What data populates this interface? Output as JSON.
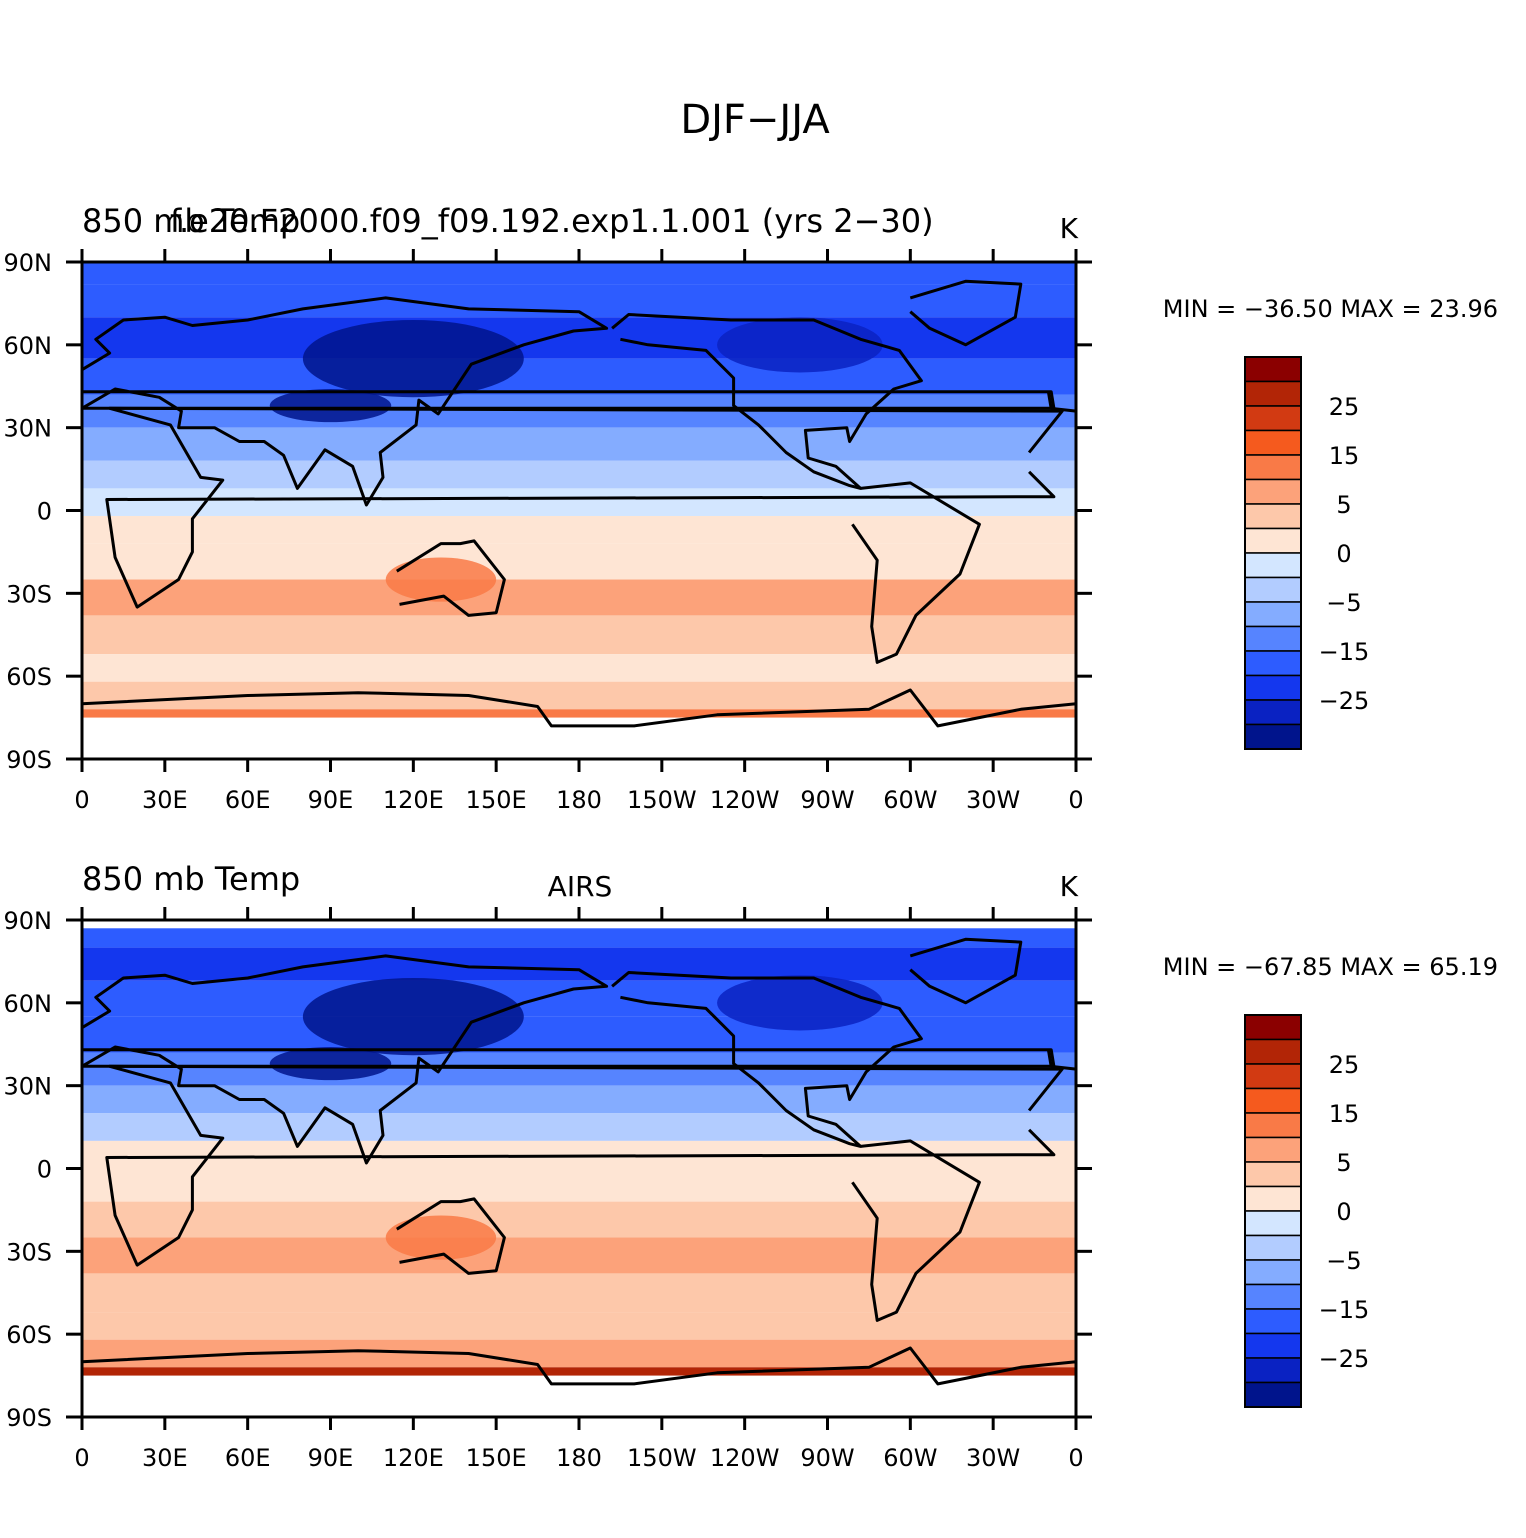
{
  "figure": {
    "title": "DJF−JJA"
  },
  "x_ticks": [
    "0",
    "30E",
    "60E",
    "90E",
    "120E",
    "150E",
    "180",
    "150W",
    "120W",
    "90W",
    "60W",
    "30W",
    "0"
  ],
  "y_ticks": [
    "90N",
    "60N",
    "30N",
    "0",
    "30S",
    "60S",
    "90S"
  ],
  "colorbar": {
    "levels": [
      -35,
      -30,
      -25,
      -20,
      -15,
      -10,
      -5,
      -2,
      0,
      2,
      5,
      10,
      15,
      20,
      25,
      30,
      35
    ],
    "labels": [
      "25",
      "15",
      "5",
      "0",
      "−5",
      "−15",
      "−25"
    ],
    "colors": [
      "#8b0000",
      "#b22506",
      "#d23a12",
      "#f55a1e",
      "#f97a47",
      "#fca27a",
      "#fdc8aa",
      "#fee5d4",
      "#d3e6ff",
      "#b2ccff",
      "#84acff",
      "#5684ff",
      "#2d5cff",
      "#1437ee",
      "#0a22c2",
      "#00148c"
    ]
  },
  "panels": [
    {
      "variable": "850 mb Temp",
      "case": "f.e20.F2000.f09_f09.192.exp1.1.001 (yrs 2−30)",
      "units": "K",
      "stats": "MIN = −36.50 MAX =  23.96",
      "min": -36.5,
      "max": 23.96
    },
    {
      "variable": "850 mb Temp",
      "case": "AIRS",
      "units": "K",
      "stats": "MIN = −67.85 MAX =  65.19",
      "min": -67.85,
      "max": 65.19
    }
  ]
}
